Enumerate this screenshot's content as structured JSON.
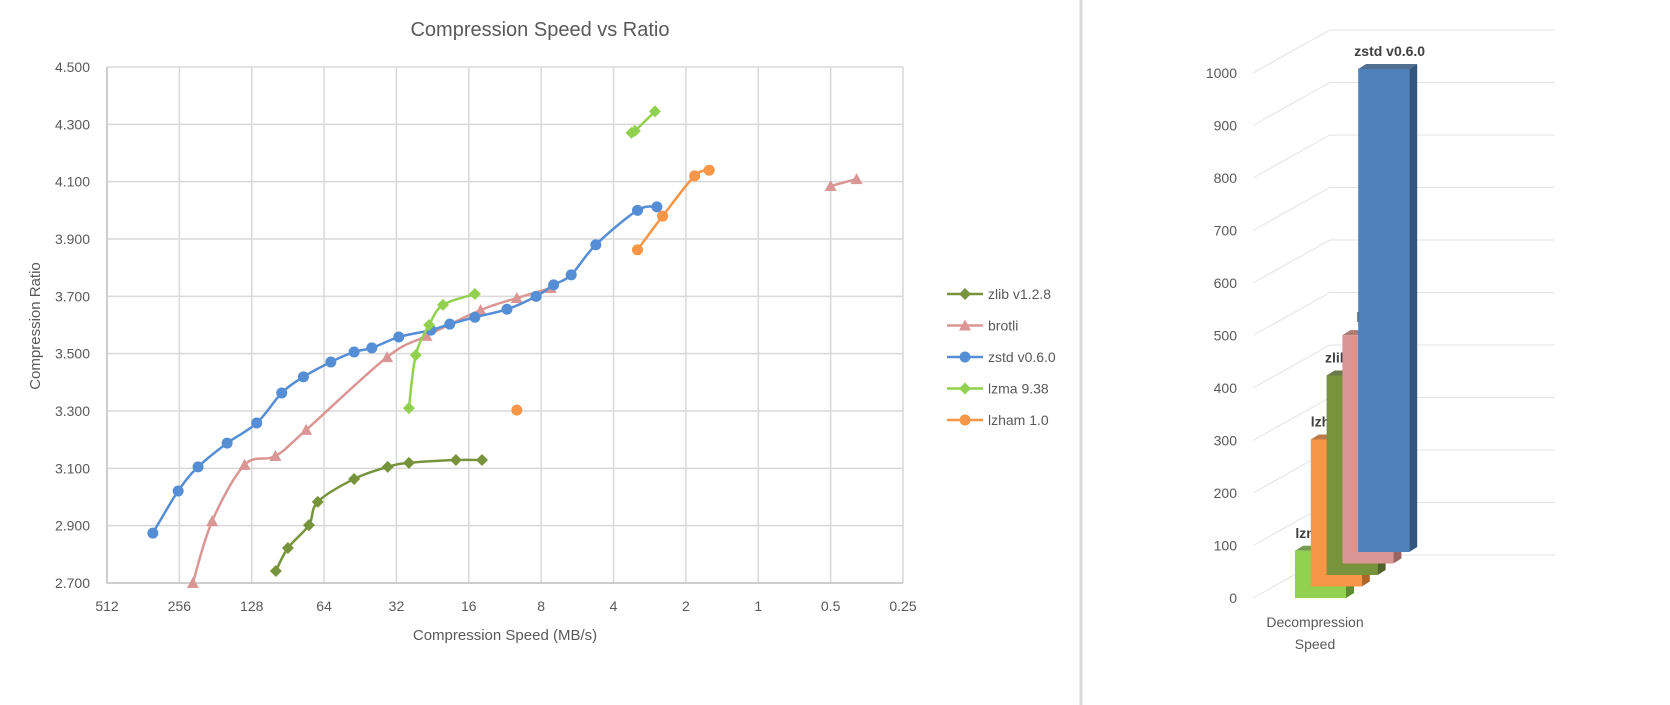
{
  "chart_data": [
    {
      "type": "line",
      "title": "Compression Speed vs Ratio",
      "xlabel": "Compression Speed (MB/s)",
      "ylabel": "Compression Ratio",
      "x_scale": "log2-reversed",
      "xlim": [
        512,
        0.25
      ],
      "ylim": [
        2.7,
        4.5
      ],
      "x_ticks": [
        "512",
        "256",
        "128",
        "64",
        "32",
        "16",
        "8",
        "4",
        "2",
        "1",
        "0.5",
        "0.25"
      ],
      "y_ticks": [
        "2.700",
        "2.900",
        "3.100",
        "3.300",
        "3.500",
        "3.700",
        "3.900",
        "4.100",
        "4.300",
        "4.500"
      ],
      "grid": true,
      "legend_position": "right",
      "series": [
        {
          "name": "zlib v1.2.8",
          "color": "#77933c",
          "marker": "diamond",
          "points": [
            [
              101.6,
              2.742
            ],
            [
              90.5,
              2.822
            ],
            [
              74,
              2.902
            ],
            [
              68,
              2.983
            ],
            [
              48,
              3.063
            ],
            [
              34.8,
              3.105
            ],
            [
              28.4,
              3.119
            ],
            [
              18.1,
              3.129
            ],
            [
              14.1,
              3.129
            ]
          ]
        },
        {
          "name": "brotli",
          "color": "#d99694",
          "marker": "triangle",
          "points": [
            [
              225,
              2.7
            ],
            [
              187,
              2.916
            ],
            [
              137,
              3.112
            ],
            [
              102,
              3.143
            ],
            [
              76,
              3.234
            ],
            [
              35,
              3.488
            ],
            [
              24,
              3.562
            ],
            [
              14.3,
              3.652
            ],
            [
              10.1,
              3.694
            ],
            [
              7.3,
              3.729
            ],
            null,
            [
              0.5,
              4.085
            ],
            [
              0.39,
              4.109
            ]
          ]
        },
        {
          "name": "zstd v0.6.0",
          "color": "#558ed5",
          "marker": "circle",
          "points": [
            [
              330,
              2.874
            ],
            [
              259,
              3.021
            ],
            [
              214,
              3.105
            ],
            [
              162,
              3.188
            ],
            [
              122,
              3.258
            ],
            [
              96,
              3.363
            ],
            [
              78,
              3.419
            ],
            [
              60,
              3.471
            ],
            [
              48,
              3.506
            ],
            [
              40.5,
              3.52
            ],
            [
              31.3,
              3.558
            ],
            [
              23,
              3.582
            ],
            [
              19.2,
              3.603
            ],
            [
              15.1,
              3.627
            ],
            [
              11.1,
              3.655
            ],
            [
              8.4,
              3.7
            ],
            [
              7.1,
              3.74
            ],
            [
              6.0,
              3.775
            ],
            [
              4.74,
              3.88
            ],
            [
              3.18,
              4.0
            ],
            [
              2.64,
              4.012
            ]
          ]
        },
        {
          "name": "lzma 9.38",
          "color": "#92d050",
          "marker": "diamond",
          "points": [
            [
              28.4,
              3.31
            ],
            [
              26.6,
              3.495
            ],
            [
              23.4,
              3.6
            ],
            [
              20.5,
              3.67
            ],
            [
              15.1,
              3.708
            ],
            null,
            [
              3.37,
              4.27
            ],
            [
              3.26,
              4.277
            ],
            [
              2.69,
              4.345
            ]
          ]
        },
        {
          "name": "lzham 1.0",
          "color": "#f79646",
          "marker": "circle",
          "points": [
            [
              10.1,
              3.303
            ],
            null,
            [
              3.18,
              3.862
            ],
            [
              2.5,
              3.98
            ],
            [
              1.84,
              4.12
            ],
            [
              1.6,
              4.14
            ]
          ]
        }
      ]
    },
    {
      "type": "bar",
      "style": "3d-column",
      "categories": [
        "Decompression Speed"
      ],
      "y_ticks": [
        "0",
        "100",
        "200",
        "300",
        "400",
        "500",
        "600",
        "700",
        "800",
        "900",
        "1000"
      ],
      "ylim": [
        0,
        1000
      ],
      "series": [
        {
          "name": "lzma 9.38",
          "value": 90,
          "color": "#92d050",
          "side": "#5e8a30"
        },
        {
          "name": "lzham 1.0",
          "value": 280,
          "color": "#f79646",
          "side": "#b0652a"
        },
        {
          "name": "zlib v1.2.8",
          "value": 380,
          "color": "#77933c",
          "side": "#4f6228"
        },
        {
          "name": "brotli",
          "value": 435,
          "color": "#d99694",
          "side": "#9b6563"
        },
        {
          "name": "zstd v0.6.0",
          "value": 920,
          "color": "#4f81bd",
          "side": "#34557d"
        }
      ]
    }
  ]
}
